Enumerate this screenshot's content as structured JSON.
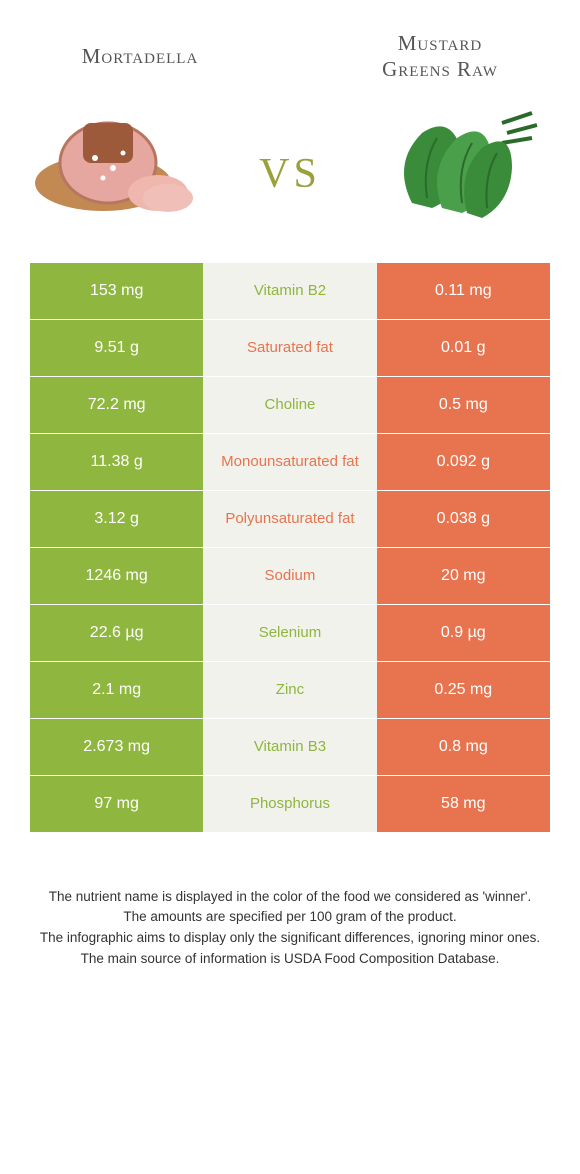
{
  "colors": {
    "left": "#8fb63e",
    "right": "#e8744f",
    "mid_bg": "#f2f2ec",
    "vs": "#9aa03c"
  },
  "header": {
    "left_title": "Mortadella",
    "right_title_line1": "Mustard",
    "right_title_line2": "Greens Raw",
    "vs": "vs"
  },
  "rows": [
    {
      "left": "153 mg",
      "mid": "Vitamin B2",
      "right": "0.11 mg",
      "winner": "left"
    },
    {
      "left": "9.51 g",
      "mid": "Saturated fat",
      "right": "0.01 g",
      "winner": "right"
    },
    {
      "left": "72.2 mg",
      "mid": "Choline",
      "right": "0.5 mg",
      "winner": "left"
    },
    {
      "left": "11.38 g",
      "mid": "Monounsaturated fat",
      "right": "0.092 g",
      "winner": "right"
    },
    {
      "left": "3.12 g",
      "mid": "Polyunsaturated fat",
      "right": "0.038 g",
      "winner": "right"
    },
    {
      "left": "1246 mg",
      "mid": "Sodium",
      "right": "20 mg",
      "winner": "right"
    },
    {
      "left": "22.6 µg",
      "mid": "Selenium",
      "right": "0.9 µg",
      "winner": "left"
    },
    {
      "left": "2.1 mg",
      "mid": "Zinc",
      "right": "0.25 mg",
      "winner": "left"
    },
    {
      "left": "2.673 mg",
      "mid": "Vitamin B3",
      "right": "0.8 mg",
      "winner": "left"
    },
    {
      "left": "97 mg",
      "mid": "Phosphorus",
      "right": "58 mg",
      "winner": "left"
    }
  ],
  "footnotes": [
    "The nutrient name is displayed in the color of the food we considered as 'winner'.",
    "The amounts are specified per 100 gram of the product.",
    "The infographic aims to display only the significant differences, ignoring minor ones.",
    "The main source of information is USDA Food Composition Database."
  ]
}
